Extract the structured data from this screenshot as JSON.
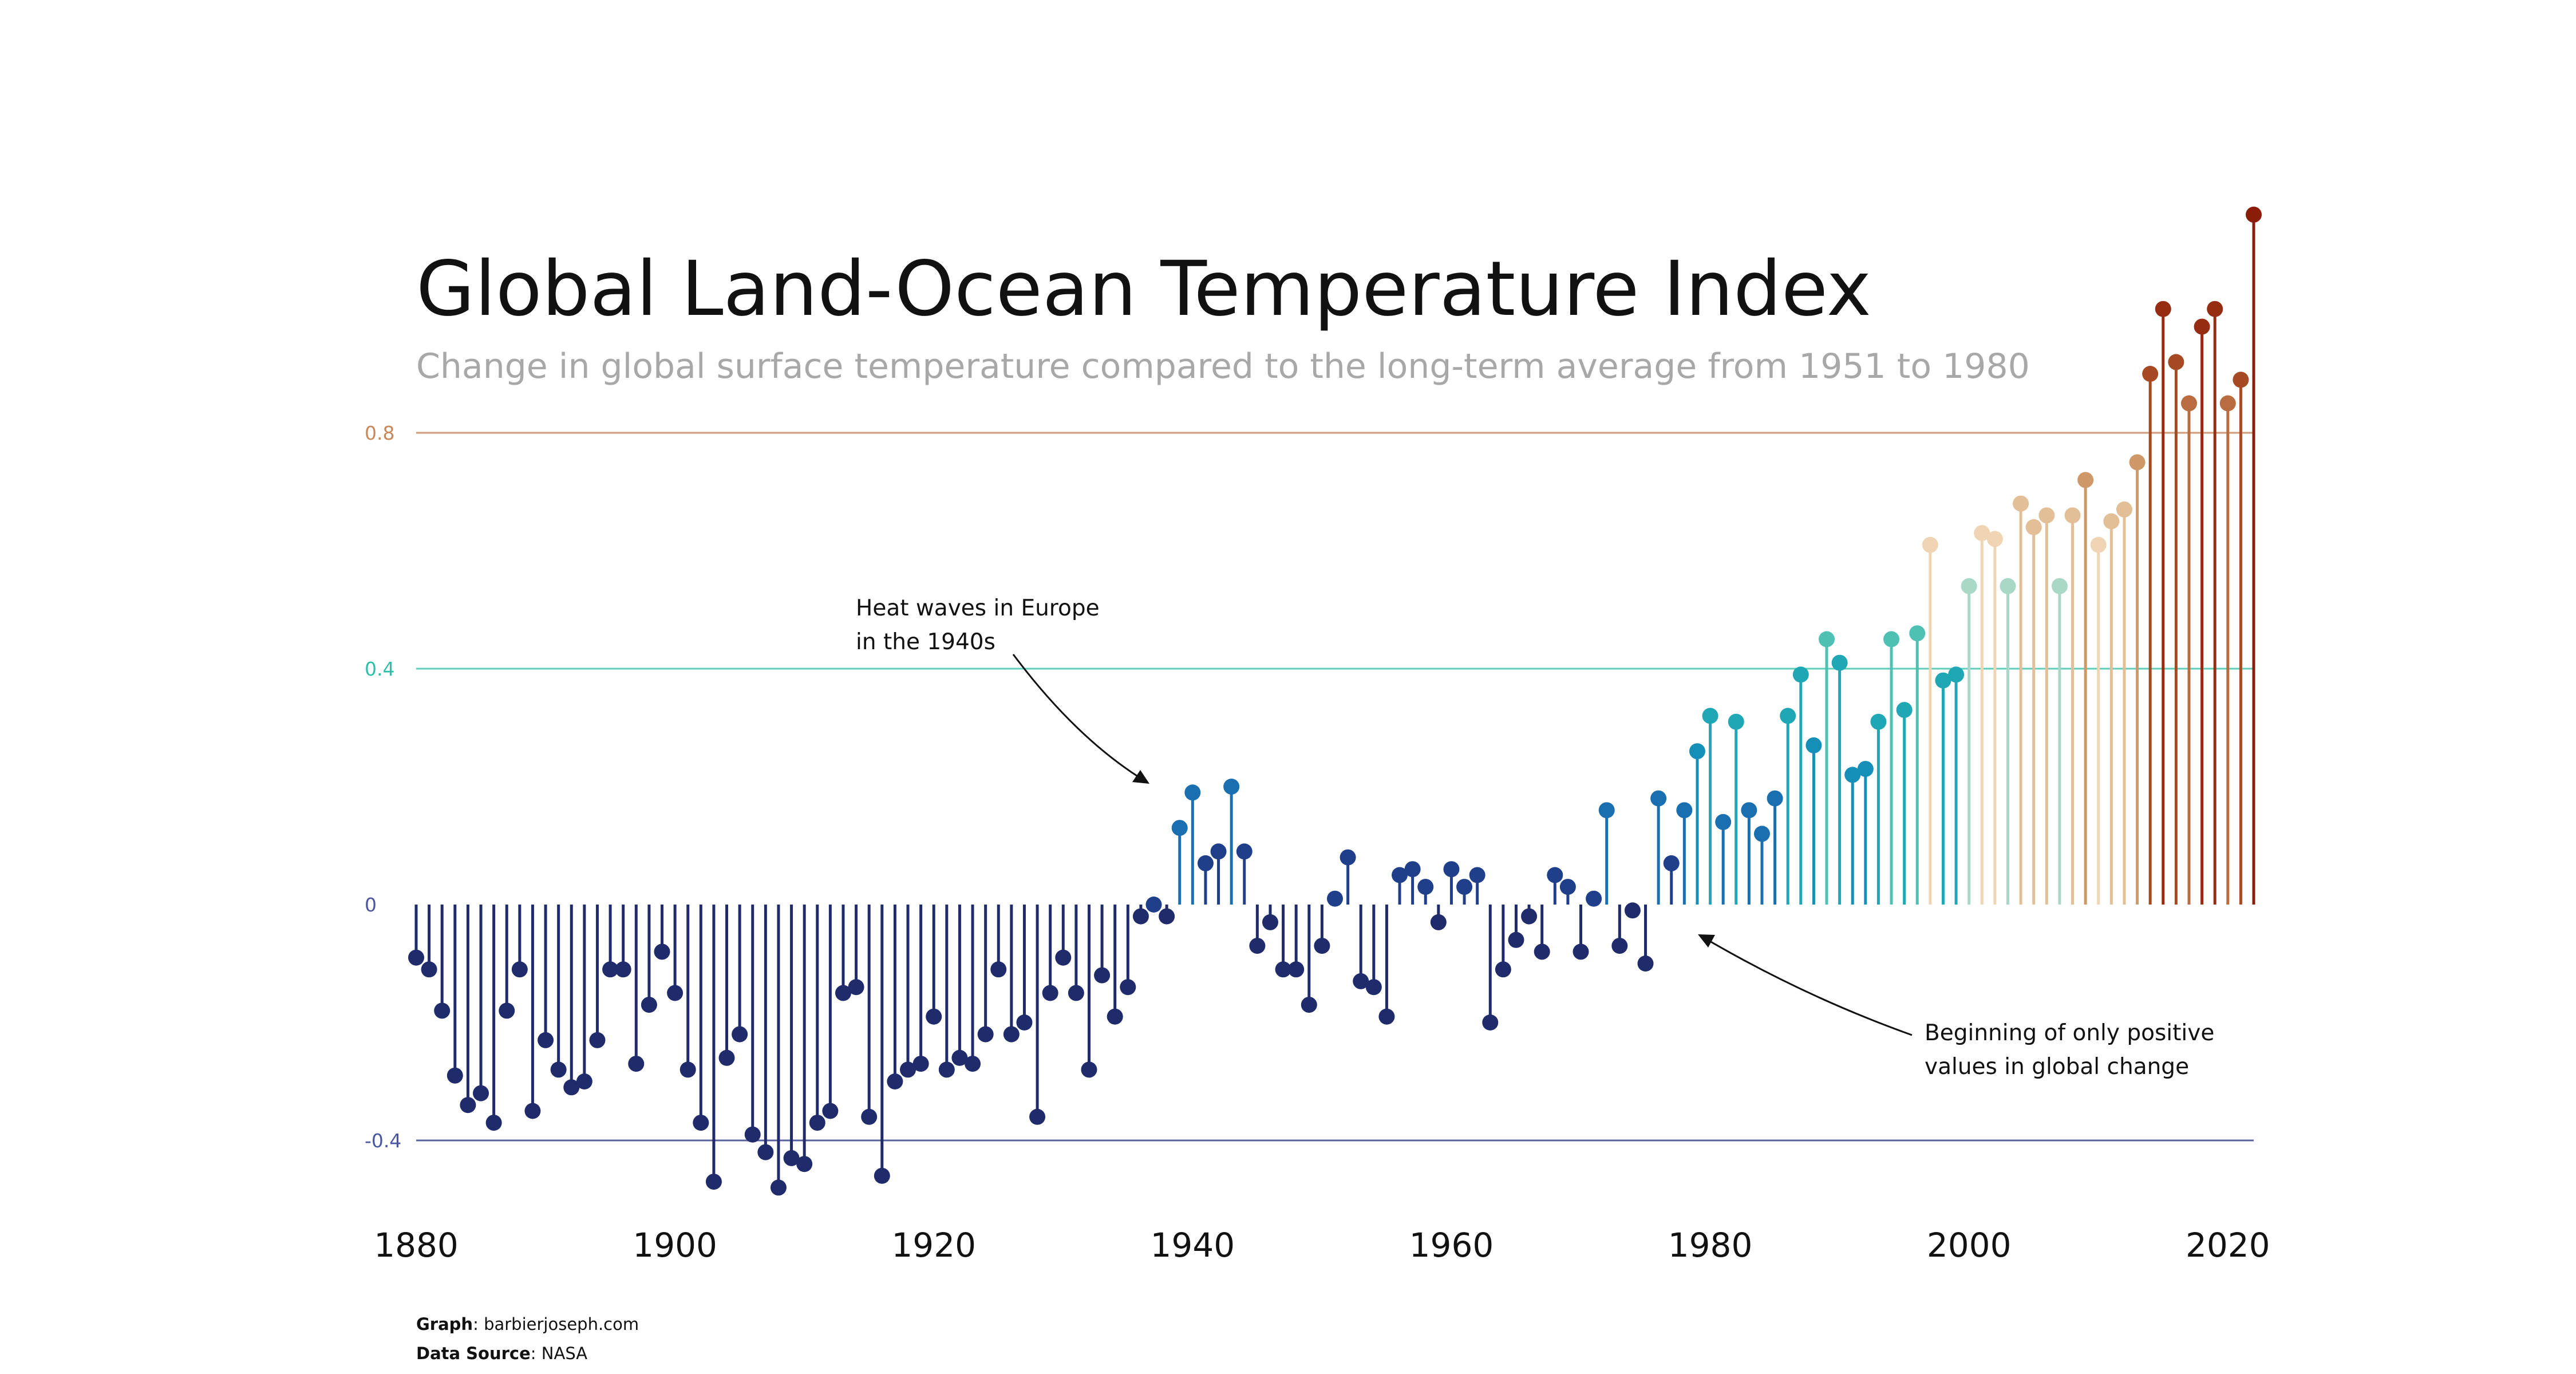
{
  "chart_data": {
    "type": "lollipop",
    "title": "Global Land-Ocean Temperature Index",
    "subtitle": "Change in global surface temperature compared to the long-term average from 1951 to 1980",
    "xlabel": "",
    "ylabel": "",
    "x_ticks": [
      "1880",
      "1900",
      "1920",
      "1940",
      "1960",
      "1980",
      "2000",
      "2020"
    ],
    "y_ticks": [
      {
        "value": 0.8,
        "label": "0.8",
        "color": "#c8885a"
      },
      {
        "value": 0.4,
        "label": "0.4",
        "color": "#2fbfa8"
      },
      {
        "value": 0,
        "label": "0",
        "color": "#4a56a0"
      },
      {
        "value": -0.4,
        "label": "-0.4",
        "color": "#4a56a0"
      }
    ],
    "xlim": [
      1880,
      2022
    ],
    "ylim": [
      -0.52,
      1.18
    ],
    "grid_lines": [
      0.8,
      0.4,
      -0.4
    ],
    "years": [
      1880,
      1881,
      1882,
      1883,
      1884,
      1885,
      1886,
      1887,
      1888,
      1889,
      1890,
      1891,
      1892,
      1893,
      1894,
      1895,
      1896,
      1897,
      1898,
      1899,
      1900,
      1901,
      1902,
      1903,
      1904,
      1905,
      1906,
      1907,
      1908,
      1909,
      1910,
      1911,
      1912,
      1913,
      1914,
      1915,
      1916,
      1917,
      1918,
      1919,
      1920,
      1921,
      1922,
      1923,
      1924,
      1925,
      1926,
      1927,
      1928,
      1929,
      1930,
      1931,
      1932,
      1933,
      1934,
      1935,
      1936,
      1937,
      1938,
      1939,
      1940,
      1941,
      1942,
      1943,
      1944,
      1945,
      1946,
      1947,
      1948,
      1949,
      1950,
      1951,
      1952,
      1953,
      1954,
      1955,
      1956,
      1957,
      1958,
      1959,
      1960,
      1961,
      1962,
      1963,
      1964,
      1965,
      1966,
      1967,
      1968,
      1969,
      1970,
      1971,
      1972,
      1973,
      1974,
      1975,
      1976,
      1977,
      1978,
      1979,
      1980,
      1981,
      1982,
      1983,
      1984,
      1985,
      1986,
      1987,
      1988,
      1989,
      1990,
      1991,
      1992,
      1993,
      1994,
      1995,
      1996,
      1997,
      1998,
      1999,
      2000,
      2001,
      2002,
      2003,
      2004,
      2005,
      2006,
      2007,
      2008,
      2009,
      2010,
      2011,
      2012,
      2013,
      2014,
      2015,
      2016,
      2017,
      2018,
      2019,
      2020,
      2021,
      2022
    ],
    "values": [
      -0.09,
      -0.11,
      -0.18,
      -0.29,
      -0.34,
      -0.32,
      -0.37,
      -0.18,
      -0.11,
      -0.35,
      -0.23,
      -0.28,
      -0.31,
      -0.3,
      -0.23,
      -0.11,
      -0.11,
      -0.27,
      -0.17,
      -0.08,
      -0.15,
      -0.28,
      -0.37,
      -0.47,
      -0.26,
      -0.22,
      -0.39,
      -0.42,
      -0.48,
      -0.43,
      -0.44,
      -0.37,
      -0.35,
      -0.15,
      -0.14,
      -0.36,
      -0.46,
      -0.3,
      -0.28,
      -0.27,
      -0.19,
      -0.28,
      -0.26,
      -0.27,
      -0.22,
      -0.11,
      -0.22,
      -0.2,
      -0.36,
      -0.15,
      -0.09,
      -0.15,
      -0.28,
      -0.12,
      -0.19,
      -0.14,
      -0.02,
      0.0,
      -0.02,
      0.13,
      0.19,
      0.07,
      0.09,
      0.2,
      0.09,
      -0.07,
      -0.03,
      -0.11,
      -0.11,
      -0.17,
      -0.07,
      0.01,
      0.08,
      -0.13,
      -0.14,
      -0.19,
      0.05,
      0.06,
      0.03,
      -0.03,
      0.06,
      0.03,
      0.05,
      -0.2,
      -0.11,
      -0.06,
      -0.02,
      -0.08,
      0.05,
      0.03,
      -0.08,
      0.01,
      0.16,
      -0.07,
      -0.01,
      -0.1,
      0.18,
      0.07,
      0.16,
      0.26,
      0.32,
      0.14,
      0.31,
      0.16,
      0.12,
      0.18,
      0.32,
      0.39,
      0.27,
      0.45,
      0.41,
      0.22,
      0.23,
      0.31,
      0.45,
      0.33,
      0.46,
      0.61,
      0.38,
      0.39,
      0.54,
      0.63,
      0.62,
      0.54,
      0.68,
      0.64,
      0.66,
      0.54,
      0.66,
      0.72,
      0.61,
      0.65,
      0.67,
      0.75,
      0.9,
      1.01,
      0.92,
      0.85,
      0.98,
      1.01,
      0.85,
      0.89,
      1.17
    ]
  },
  "annotations": {
    "heatwave_line1": "Heat waves in Europe",
    "heatwave_line2": "in the 1940s",
    "positive_line1": "Beginning of only positive",
    "positive_line2": "values in global change"
  },
  "footer": {
    "graph_label": "Graph",
    "graph_value": ": barbierjoseph.com",
    "source_label": "Data Source",
    "source_value": ": NASA"
  }
}
